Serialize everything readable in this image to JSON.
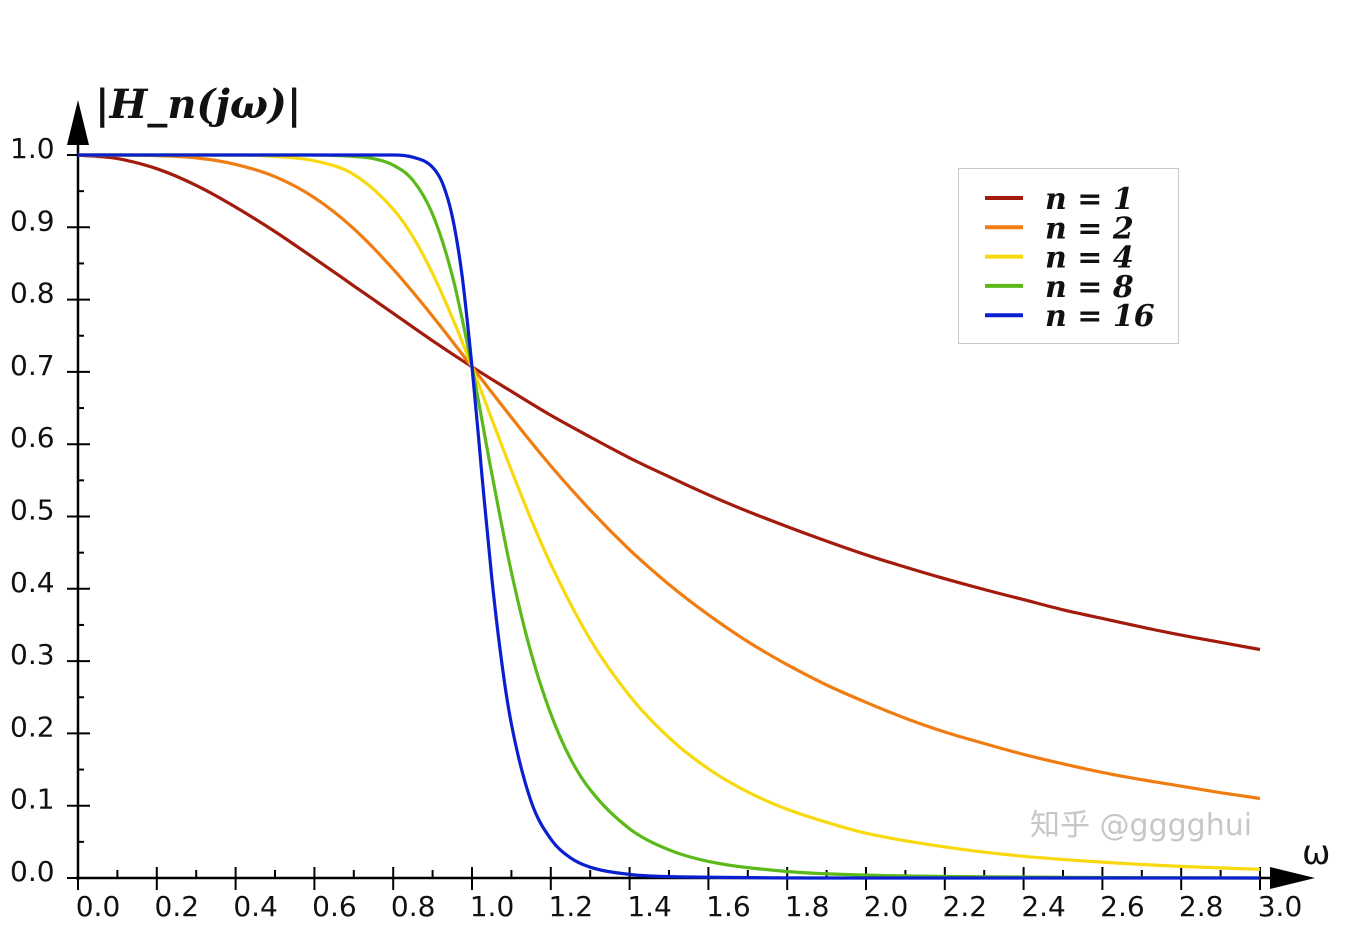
{
  "chart_data": {
    "type": "line",
    "title": "",
    "xlabel": "ω",
    "ylabel": "|H_n(jω)|",
    "xlim": [
      0,
      3.0
    ],
    "ylim": [
      0,
      1.0
    ],
    "grid": false,
    "legend_position": "top-right",
    "x_ticks": [
      "0.0",
      "0.2",
      "0.4",
      "0.6",
      "0.8",
      "1.0",
      "1.2",
      "1.4",
      "1.6",
      "1.8",
      "2.0",
      "2.2",
      "2.4",
      "2.6",
      "2.8",
      "3.0"
    ],
    "y_ticks": [
      "0.0",
      "0.1",
      "0.2",
      "0.3",
      "0.4",
      "0.5",
      "0.6",
      "0.7",
      "0.8",
      "0.9",
      "1.0"
    ],
    "series": [
      {
        "name": "n = 1",
        "color": "#a31b0c",
        "x": [
          0,
          0.1,
          0.2,
          0.3,
          0.4,
          0.5,
          0.6,
          0.7,
          0.8,
          0.9,
          1.0,
          1.1,
          1.2,
          1.3,
          1.4,
          1.5,
          1.6,
          1.7,
          1.8,
          1.9,
          2.0,
          2.1,
          2.2,
          2.3,
          2.4,
          2.5,
          2.6,
          2.7,
          2.8,
          2.9,
          3.0
        ],
        "y": [
          1,
          0.995,
          0.981,
          0.958,
          0.928,
          0.894,
          0.857,
          0.819,
          0.781,
          0.743,
          0.707,
          0.673,
          0.64,
          0.61,
          0.581,
          0.555,
          0.53,
          0.507,
          0.486,
          0.466,
          0.447,
          0.43,
          0.414,
          0.399,
          0.385,
          0.371,
          0.359,
          0.347,
          0.336,
          0.326,
          0.316
        ]
      },
      {
        "name": "n = 2",
        "color": "#f07d12",
        "x": [
          0,
          0.1,
          0.2,
          0.3,
          0.4,
          0.5,
          0.6,
          0.7,
          0.8,
          0.9,
          1.0,
          1.1,
          1.2,
          1.3,
          1.4,
          1.5,
          1.6,
          1.7,
          1.8,
          1.9,
          2.0,
          2.1,
          2.2,
          2.3,
          2.4,
          2.5,
          2.6,
          2.7,
          2.8,
          2.9,
          3.0
        ],
        "y": [
          1,
          1.0,
          0.999,
          0.996,
          0.987,
          0.97,
          0.941,
          0.898,
          0.842,
          0.777,
          0.707,
          0.637,
          0.57,
          0.509,
          0.454,
          0.406,
          0.364,
          0.327,
          0.295,
          0.267,
          0.243,
          0.221,
          0.202,
          0.186,
          0.171,
          0.158,
          0.146,
          0.136,
          0.127,
          0.118,
          0.11
        ]
      },
      {
        "name": "n = 4",
        "color": "#f8d90f",
        "x": [
          0,
          0.2,
          0.4,
          0.5,
          0.6,
          0.7,
          0.8,
          0.85,
          0.9,
          0.95,
          1.0,
          1.05,
          1.1,
          1.15,
          1.2,
          1.3,
          1.4,
          1.5,
          1.6,
          1.7,
          1.8,
          1.9,
          2.0,
          2.2,
          2.4,
          2.6,
          2.8,
          3.0
        ],
        "y": [
          1,
          1.0,
          1.0,
          0.998,
          0.992,
          0.973,
          0.925,
          0.887,
          0.836,
          0.775,
          0.707,
          0.635,
          0.564,
          0.496,
          0.434,
          0.33,
          0.252,
          0.194,
          0.151,
          0.119,
          0.095,
          0.077,
          0.062,
          0.043,
          0.03,
          0.022,
          0.016,
          0.012
        ]
      },
      {
        "name": "n = 8",
        "color": "#5bb91a",
        "x": [
          0,
          0.4,
          0.6,
          0.7,
          0.75,
          0.8,
          0.85,
          0.9,
          0.95,
          1.0,
          1.05,
          1.1,
          1.15,
          1.2,
          1.25,
          1.3,
          1.4,
          1.5,
          1.6,
          1.8,
          2.0,
          2.5,
          3.0
        ],
        "y": [
          1,
          1.0,
          1.0,
          0.998,
          0.995,
          0.986,
          0.965,
          0.918,
          0.833,
          0.707,
          0.56,
          0.423,
          0.311,
          0.227,
          0.165,
          0.122,
          0.068,
          0.039,
          0.023,
          0.009,
          0.004,
          0.001,
          0.0
        ]
      },
      {
        "name": "n = 16",
        "color": "#0a1fcf",
        "x": [
          0,
          0.6,
          0.8,
          0.85,
          0.9,
          0.925,
          0.95,
          0.975,
          1.0,
          1.025,
          1.05,
          1.075,
          1.1,
          1.15,
          1.2,
          1.25,
          1.3,
          1.4,
          1.5,
          2.0,
          3.0
        ],
        "y": [
          1,
          1.0,
          1.0,
          0.997,
          0.983,
          0.961,
          0.915,
          0.832,
          0.707,
          0.559,
          0.416,
          0.3,
          0.213,
          0.106,
          0.054,
          0.028,
          0.015,
          0.005,
          0.002,
          0.0,
          0.0
        ]
      }
    ],
    "legend_labels": [
      "n = 1",
      "n = 2",
      "n = 4",
      "n = 8",
      "n = 16"
    ],
    "watermark": "知乎 @gggghui"
  }
}
